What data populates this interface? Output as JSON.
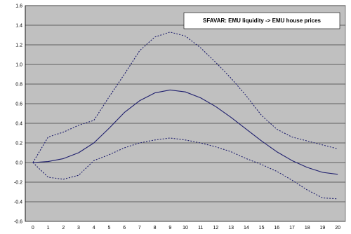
{
  "chart_data": {
    "type": "line",
    "title": "",
    "xlabel": "",
    "ylabel": "",
    "x": [
      0,
      1,
      2,
      3,
      4,
      5,
      6,
      7,
      8,
      9,
      10,
      11,
      12,
      13,
      14,
      15,
      16,
      17,
      18,
      19,
      20
    ],
    "xlim": [
      0,
      20
    ],
    "ylim": [
      -0.6,
      1.6
    ],
    "y_ticks": [
      -0.6,
      -0.4,
      -0.2,
      0.0,
      0.2,
      0.4,
      0.6,
      0.8,
      1.0,
      1.2,
      1.4,
      1.6
    ],
    "y_tick_labels": [
      "-0.6",
      "-0.4",
      "-0.2",
      "0.0",
      "0.2",
      "0.4",
      "0.6",
      "0.8",
      "1.0",
      "1.2",
      "1.4",
      "1.6"
    ],
    "x_tick_labels": [
      "0",
      "1",
      "2",
      "3",
      "4",
      "5",
      "6",
      "7",
      "8",
      "9",
      "10",
      "11",
      "12",
      "13",
      "14",
      "15",
      "16",
      "17",
      "18",
      "19",
      "20"
    ],
    "grid": "horizontal",
    "background_color": "#c0c0c0",
    "legend_placement": "top-right",
    "legend_label": "SFAVAR: EMU liquidity -> EMU house prices",
    "series": [
      {
        "style": "solid",
        "color": "#1f1f6e",
        "values": [
          0.0,
          0.01,
          0.04,
          0.1,
          0.2,
          0.35,
          0.51,
          0.63,
          0.71,
          0.74,
          0.72,
          0.66,
          0.57,
          0.46,
          0.34,
          0.22,
          0.11,
          0.02,
          -0.05,
          -0.1,
          -0.12
        ]
      },
      {
        "style": "dotted",
        "color": "#1f1f6e",
        "values": [
          0.0,
          0.26,
          0.31,
          0.38,
          0.43,
          0.67,
          0.9,
          1.14,
          1.28,
          1.33,
          1.29,
          1.17,
          1.02,
          0.86,
          0.68,
          0.48,
          0.34,
          0.26,
          0.22,
          0.18,
          0.14
        ]
      },
      {
        "style": "dotted",
        "color": "#1f1f6e",
        "values": [
          0.0,
          -0.15,
          -0.17,
          -0.13,
          0.02,
          0.08,
          0.15,
          0.2,
          0.23,
          0.25,
          0.23,
          0.2,
          0.16,
          0.11,
          0.04,
          -0.02,
          -0.09,
          -0.18,
          -0.28,
          -0.36,
          -0.37
        ]
      }
    ]
  }
}
